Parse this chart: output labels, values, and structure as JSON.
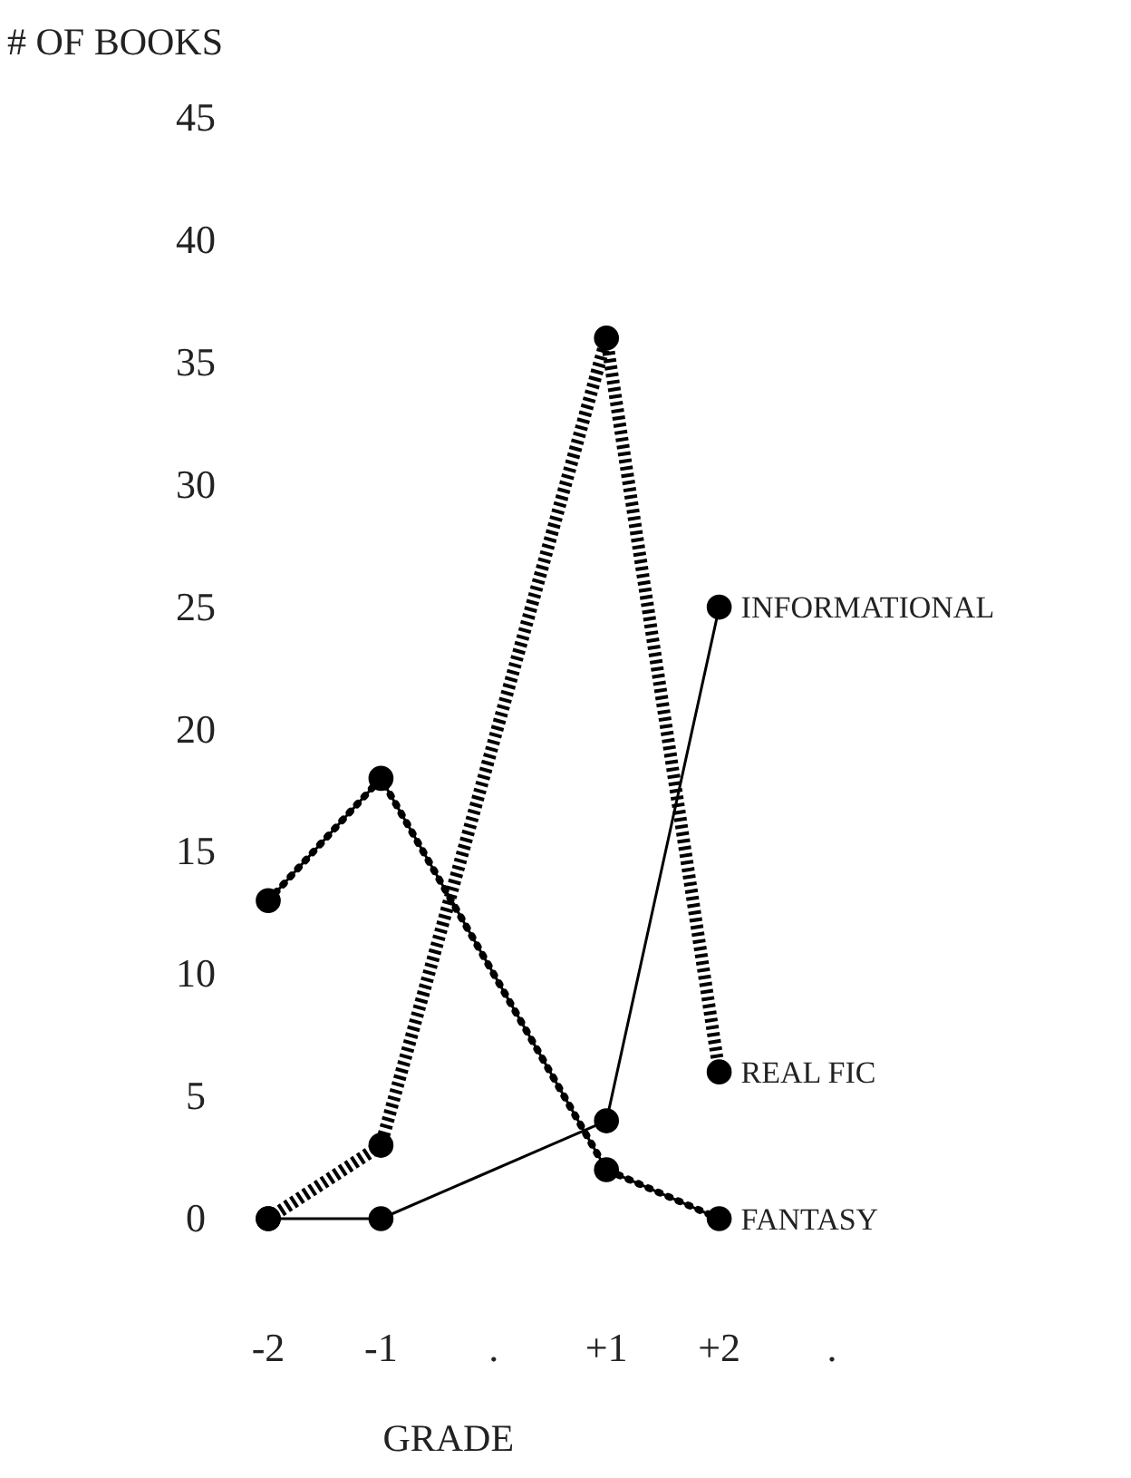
{
  "chart_data": {
    "type": "line",
    "ylabel": "# OF BOOKS",
    "xlabel": "GRADE",
    "xlim": [
      -2,
      3
    ],
    "xticks": [
      {
        "value": -2,
        "label": "-2"
      },
      {
        "value": -1,
        "label": "-1"
      },
      {
        "value": 0,
        "label": "."
      },
      {
        "value": 1,
        "label": "+1"
      },
      {
        "value": 2,
        "label": "+2"
      },
      {
        "value": 3,
        "label": "."
      }
    ],
    "ylim": [
      0,
      45
    ],
    "yticks": [
      0,
      5,
      10,
      15,
      20,
      25,
      30,
      35,
      40,
      45
    ],
    "x": [
      -2,
      -1,
      1,
      2
    ],
    "series": [
      {
        "name": "INFORMATIONAL",
        "color": "#000000",
        "line_style": "solid",
        "values": [
          0,
          0,
          4,
          25
        ]
      },
      {
        "name": "REAL FIC",
        "color": "#000000",
        "line_style": "dashed",
        "values": [
          0,
          3,
          36,
          6
        ]
      },
      {
        "name": "FANTASY",
        "color": "#000000",
        "line_style": "dotted",
        "values": [
          13,
          18,
          2,
          0
        ]
      }
    ],
    "marker": "circle",
    "grid": false,
    "legend": false
  }
}
